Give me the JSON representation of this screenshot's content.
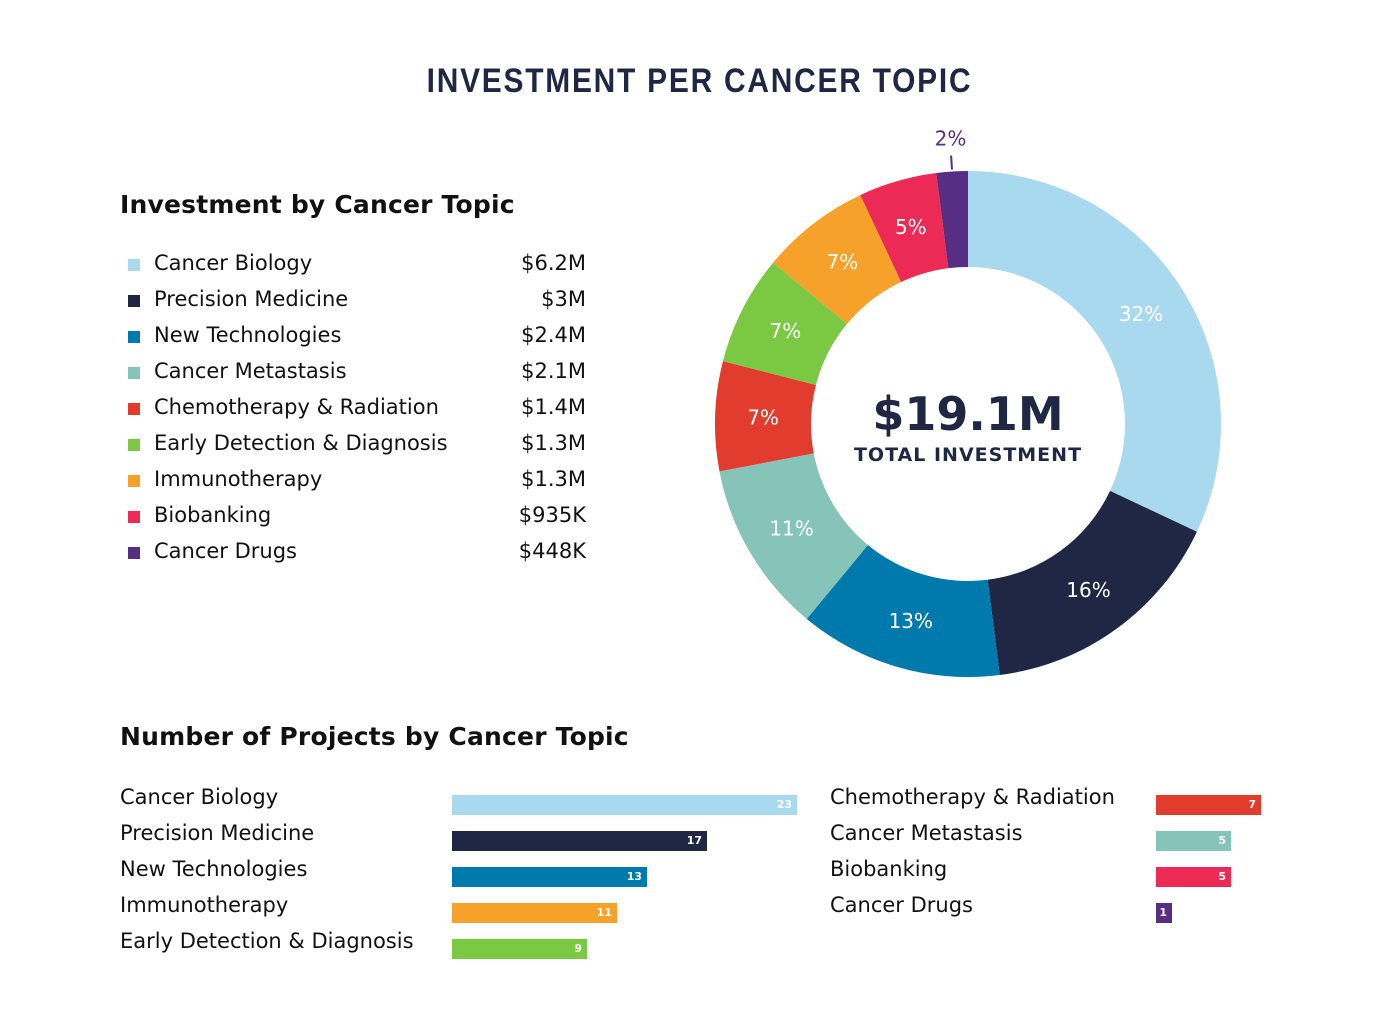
{
  "title": "INVESTMENT PER CANCER TOPIC",
  "investment_heading": "Investment by Cancer Topic",
  "projects_heading": "Number of Projects by Cancer Topic",
  "colors": {
    "cancer_biology": "#a9d9ef",
    "precision_medicine": "#1f2745",
    "new_technologies": "#0079ad",
    "cancer_metastasis": "#86c3b8",
    "chemotherapy_radiation": "#e23c2e",
    "early_detection": "#7bc843",
    "immunotherapy": "#f6a12a",
    "biobanking": "#ec2a56",
    "cancer_drugs": "#562f84"
  },
  "chart_data": [
    {
      "type": "pie",
      "title": "Investment by Cancer Topic",
      "center_value": "$19.1M",
      "center_label": "TOTAL INVESTMENT",
      "slices": [
        {
          "name": "Cancer Biology",
          "amount": "$6.2M",
          "percent": 32,
          "label": "32%",
          "color": "#a9d9ef"
        },
        {
          "name": "Precision Medicine",
          "amount": "$3M",
          "percent": 16,
          "label": "16%",
          "color": "#1f2745"
        },
        {
          "name": "New Technologies",
          "amount": "$2.4M",
          "percent": 13,
          "label": "13%",
          "color": "#0079ad"
        },
        {
          "name": "Cancer Metastasis",
          "amount": "$2.1M",
          "percent": 11,
          "label": "11%",
          "color": "#86c3b8"
        },
        {
          "name": "Chemotherapy & Radiation",
          "amount": "$1.4M",
          "percent": 7,
          "label": "7%",
          "color": "#e23c2e"
        },
        {
          "name": "Early Detection & Diagnosis",
          "amount": "$1.3M",
          "percent": 7,
          "label": "7%",
          "color": "#7bc843"
        },
        {
          "name": "Immunotherapy",
          "amount": "$1.3M",
          "percent": 7,
          "label": "7%",
          "color": "#f6a12a"
        },
        {
          "name": "Biobanking",
          "amount": "$935K",
          "percent": 5,
          "label": "5%",
          "color": "#ec2a56"
        },
        {
          "name": "Cancer Drugs",
          "amount": "$448K",
          "percent": 2,
          "label": "2%",
          "color": "#562f84"
        }
      ]
    },
    {
      "type": "bar",
      "title": "Number of Projects by Cancer Topic",
      "max": 23,
      "columns": [
        [
          {
            "name": "Cancer Biology",
            "value": 23,
            "color": "#a9d9ef"
          },
          {
            "name": "Precision Medicine",
            "value": 17,
            "color": "#1f2745"
          },
          {
            "name": "New Technologies",
            "value": 13,
            "color": "#0079ad"
          },
          {
            "name": "Immunotherapy",
            "value": 11,
            "color": "#f6a12a"
          },
          {
            "name": "Early Detection & Diagnosis",
            "value": 9,
            "color": "#7bc843"
          }
        ],
        [
          {
            "name": "Chemotherapy & Radiation",
            "value": 7,
            "color": "#e23c2e"
          },
          {
            "name": "Cancer Metastasis",
            "value": 5,
            "color": "#86c3b8"
          },
          {
            "name": "Biobanking",
            "value": 5,
            "color": "#ec2a56"
          },
          {
            "name": "Cancer Drugs",
            "value": 1,
            "color": "#562f84"
          }
        ]
      ]
    }
  ]
}
